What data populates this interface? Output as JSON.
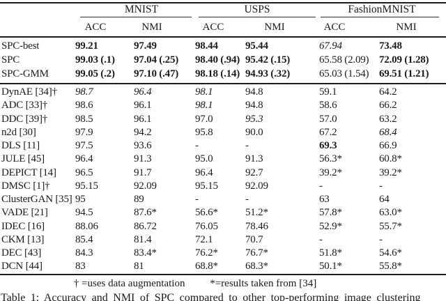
{
  "colors": {
    "background": "#ffffff",
    "text": "#1a1a1a",
    "rule": "#1c1c1c"
  },
  "table": {
    "groups": [
      "MNIST",
      "USPS",
      "FashionMNIST"
    ],
    "subheaders": [
      "ACC",
      "NMI",
      "ACC",
      "NMI",
      "ACC",
      "NMI"
    ],
    "spc_rows": [
      {
        "label": "SPC-best",
        "cells": [
          {
            "t": "99.21",
            "s": "b"
          },
          {
            "t": "97.49",
            "s": "b"
          },
          {
            "t": "98.44",
            "s": "b"
          },
          {
            "t": "95.44",
            "s": "b"
          },
          {
            "t": "67.94",
            "s": "i"
          },
          {
            "t": "73.48",
            "s": "b"
          }
        ]
      },
      {
        "label": "SPC",
        "cells": [
          {
            "t": "99.03 (.1)",
            "s": "b"
          },
          {
            "t": "97.04 (.25)",
            "s": "b"
          },
          {
            "t": "98.40 (.94)",
            "s": "b"
          },
          {
            "t": "95.42 (.15)",
            "s": "b"
          },
          {
            "t": "65.58 (2.09)",
            "s": ""
          },
          {
            "t": "72.09 (1.28)",
            "s": "b"
          }
        ]
      },
      {
        "label": "SPC-GMM",
        "cells": [
          {
            "t": "99.05 (.2)",
            "s": "b"
          },
          {
            "t": "97.10 (.47)",
            "s": "b"
          },
          {
            "t": "98.18 (.14)",
            "s": "b"
          },
          {
            "t": "94.93 (.32)",
            "s": "b"
          },
          {
            "t": "65.03 (1.54)",
            "s": ""
          },
          {
            "t": "69.51 (1.21)",
            "s": "b"
          }
        ]
      }
    ],
    "baseline_rows": [
      {
        "label": "DynAE [34]†",
        "cells": [
          {
            "t": "98.7",
            "s": "i"
          },
          {
            "t": "96.4",
            "s": "i"
          },
          {
            "t": "98.1",
            "s": "i"
          },
          {
            "t": "94.8",
            "s": ""
          },
          {
            "t": "59.1",
            "s": ""
          },
          {
            "t": "64.2",
            "s": ""
          }
        ]
      },
      {
        "label": "ADC [33]†",
        "cells": [
          {
            "t": "98.6",
            "s": ""
          },
          {
            "t": "96.1",
            "s": ""
          },
          {
            "t": "98.1",
            "s": "i"
          },
          {
            "t": "94.8",
            "s": ""
          },
          {
            "t": "58.6",
            "s": ""
          },
          {
            "t": "66.2",
            "s": ""
          }
        ]
      },
      {
        "label": "DDC [39]†",
        "cells": [
          {
            "t": "98.5",
            "s": ""
          },
          {
            "t": "96.1",
            "s": ""
          },
          {
            "t": "97.0",
            "s": ""
          },
          {
            "t": "95.3",
            "s": "i"
          },
          {
            "t": "57.0",
            "s": ""
          },
          {
            "t": "63.2",
            "s": ""
          }
        ]
      },
      {
        "label": "n2d [30]",
        "cells": [
          {
            "t": "97.9",
            "s": ""
          },
          {
            "t": "94.2",
            "s": ""
          },
          {
            "t": "95.8",
            "s": ""
          },
          {
            "t": "90.0",
            "s": ""
          },
          {
            "t": "67.2",
            "s": ""
          },
          {
            "t": "68.4",
            "s": "i"
          }
        ]
      },
      {
        "label": "DLS [11]",
        "cells": [
          {
            "t": "97.5",
            "s": ""
          },
          {
            "t": "93.6",
            "s": ""
          },
          {
            "t": "-",
            "s": ""
          },
          {
            "t": "-",
            "s": ""
          },
          {
            "t": "69.3",
            "s": "b"
          },
          {
            "t": "66.9",
            "s": ""
          }
        ]
      },
      {
        "label": "JULE [45]",
        "cells": [
          {
            "t": "96.4",
            "s": ""
          },
          {
            "t": "91.3",
            "s": ""
          },
          {
            "t": "95.0",
            "s": ""
          },
          {
            "t": "91.3",
            "s": ""
          },
          {
            "t": "56.3*",
            "s": ""
          },
          {
            "t": "60.8*",
            "s": ""
          }
        ]
      },
      {
        "label": "DEPICT [14]",
        "cells": [
          {
            "t": "96.5",
            "s": ""
          },
          {
            "t": "91.7",
            "s": ""
          },
          {
            "t": "96.4",
            "s": ""
          },
          {
            "t": "92.7",
            "s": ""
          },
          {
            "t": "39.2*",
            "s": ""
          },
          {
            "t": "39.2*",
            "s": ""
          }
        ]
      },
      {
        "label": "DMSC [1]†",
        "cells": [
          {
            "t": "95.15",
            "s": ""
          },
          {
            "t": "92.09",
            "s": ""
          },
          {
            "t": "95.15",
            "s": ""
          },
          {
            "t": "92.09",
            "s": ""
          },
          {
            "t": "-",
            "s": ""
          },
          {
            "t": "-",
            "s": ""
          }
        ]
      },
      {
        "label": "ClusterGAN [35]",
        "cells": [
          {
            "t": "95",
            "s": ""
          },
          {
            "t": "89",
            "s": ""
          },
          {
            "t": "-",
            "s": ""
          },
          {
            "t": "-",
            "s": ""
          },
          {
            "t": "63",
            "s": ""
          },
          {
            "t": "64",
            "s": ""
          }
        ]
      },
      {
        "label": "VADE [21]",
        "cells": [
          {
            "t": "94.5",
            "s": ""
          },
          {
            "t": "87.6*",
            "s": ""
          },
          {
            "t": "56.6*",
            "s": ""
          },
          {
            "t": "51.2*",
            "s": ""
          },
          {
            "t": "57.8*",
            "s": ""
          },
          {
            "t": "63.0*",
            "s": ""
          }
        ]
      },
      {
        "label": "IDEC [16]",
        "cells": [
          {
            "t": "88.06",
            "s": ""
          },
          {
            "t": "86.72",
            "s": ""
          },
          {
            "t": "76.05",
            "s": ""
          },
          {
            "t": "78.46",
            "s": ""
          },
          {
            "t": "52.9*",
            "s": ""
          },
          {
            "t": "55.7*",
            "s": ""
          }
        ]
      },
      {
        "label": "CKM [13]",
        "cells": [
          {
            "t": "85.4",
            "s": ""
          },
          {
            "t": "81.4",
            "s": ""
          },
          {
            "t": "72.1",
            "s": ""
          },
          {
            "t": "70.7",
            "s": ""
          },
          {
            "t": "-",
            "s": ""
          },
          {
            "t": "-",
            "s": ""
          }
        ]
      },
      {
        "label": "DEC [43]",
        "cells": [
          {
            "t": "84.3",
            "s": ""
          },
          {
            "t": "83.4*",
            "s": ""
          },
          {
            "t": "76.2*",
            "s": ""
          },
          {
            "t": "76.7*",
            "s": ""
          },
          {
            "t": "51.8*",
            "s": ""
          },
          {
            "t": "54.6*",
            "s": ""
          }
        ]
      },
      {
        "label": "DCN [44]",
        "cells": [
          {
            "t": "83",
            "s": ""
          },
          {
            "t": "81",
            "s": ""
          },
          {
            "t": "68.8*",
            "s": ""
          },
          {
            "t": "68.3*",
            "s": ""
          },
          {
            "t": "50.1*",
            "s": ""
          },
          {
            "t": "55.8*",
            "s": ""
          }
        ]
      }
    ],
    "footnote": {
      "dagger_note": "† =uses data augmentation",
      "star_note": "*=results taken from [34]"
    },
    "caption": "Table 1: Accuracy and NMI of SPC compared to other top-performing image clustering"
  }
}
